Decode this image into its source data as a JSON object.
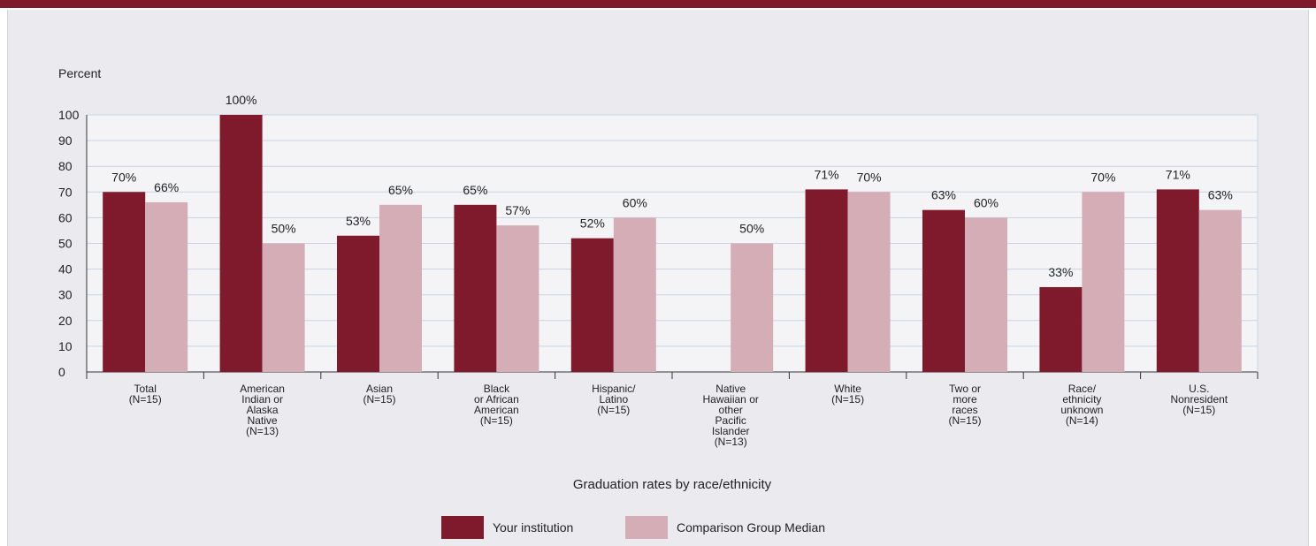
{
  "colors": {
    "primary": "#7f1a2c",
    "comparison": "#d4adb6",
    "background": "#ebebef"
  },
  "chart_data": {
    "type": "bar",
    "title": "",
    "ylabel": "Percent",
    "xlabel": "Graduation rates by race/ethnicity",
    "ylim": [
      0,
      100
    ],
    "yticks": [
      0,
      10,
      20,
      30,
      40,
      50,
      60,
      70,
      80,
      90,
      100
    ],
    "grid": true,
    "legend_position": "bottom",
    "categories": [
      [
        "Total",
        "(N=15)"
      ],
      [
        "American",
        "Indian or",
        "Alaska",
        "Native",
        "(N=13)"
      ],
      [
        "Asian",
        "(N=15)"
      ],
      [
        "Black",
        "or African",
        "American",
        "(N=15)"
      ],
      [
        "Hispanic/",
        "Latino",
        "(N=15)"
      ],
      [
        "Native",
        "Hawaiian or",
        "other",
        "Pacific",
        "Islander",
        "(N=13)"
      ],
      [
        "White",
        "(N=15)"
      ],
      [
        "Two or",
        "more",
        "races",
        "(N=15)"
      ],
      [
        "Race/",
        "ethnicity",
        "unknown",
        "(N=14)"
      ],
      [
        "U.S.",
        "Nonresident",
        "(N=15)"
      ]
    ],
    "series": [
      {
        "name": "Your institution",
        "values": [
          70,
          100,
          53,
          65,
          52,
          null,
          71,
          63,
          33,
          71
        ],
        "labels": [
          "70%",
          "100%",
          "53%",
          "65%",
          "52%",
          "",
          "71%",
          "63%",
          "33%",
          "71%"
        ]
      },
      {
        "name": "Comparison Group Median",
        "values": [
          66,
          50,
          65,
          57,
          60,
          50,
          70,
          60,
          70,
          63
        ],
        "labels": [
          "66%",
          "50%",
          "65%",
          "57%",
          "60%",
          "50%",
          "70%",
          "60%",
          "70%",
          "63%"
        ]
      }
    ]
  }
}
